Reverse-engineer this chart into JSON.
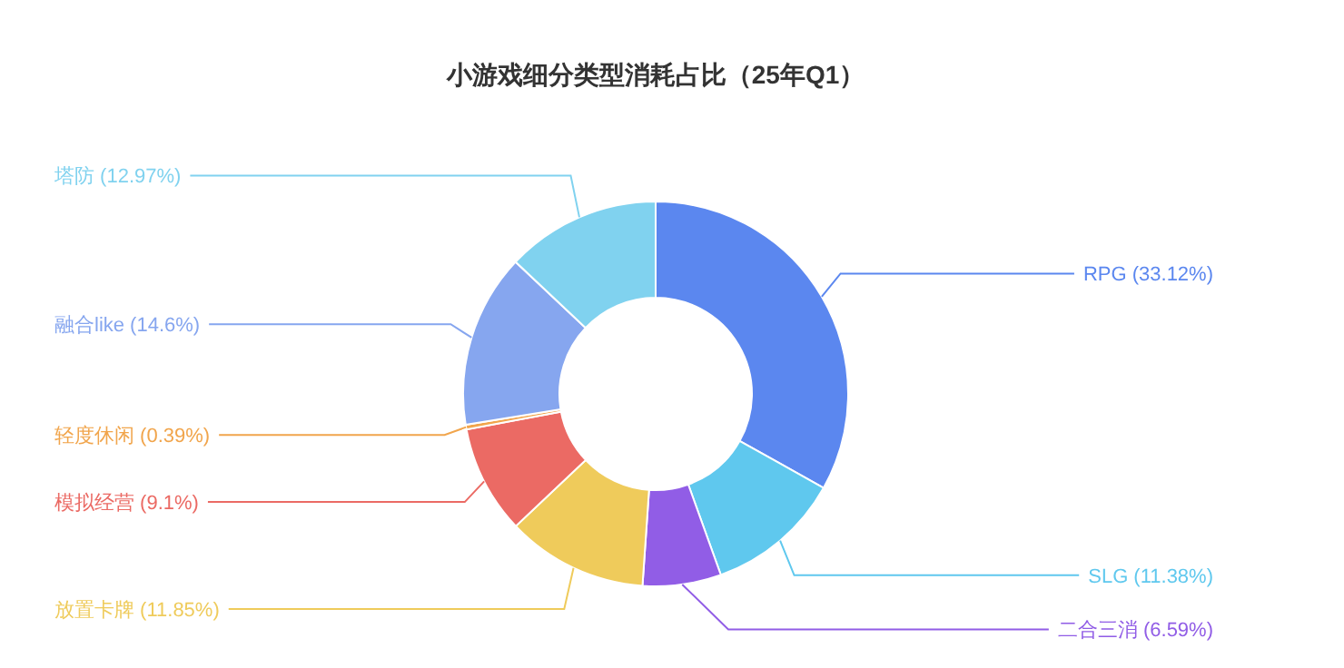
{
  "chart_data": {
    "type": "donut",
    "title": "小游戏细分类型消耗占比（25年Q1）",
    "categories": [
      "RPG",
      "SLG",
      "二合三消",
      "放置卡牌",
      "模拟经营",
      "轻度休闲",
      "融合like",
      "塔防"
    ],
    "values": [
      33.12,
      11.38,
      6.59,
      11.85,
      9.1,
      0.39,
      14.6,
      12.97
    ],
    "value_labels": [
      "(33.12%)",
      "(11.38%)",
      "(6.59%)",
      "(11.85%)",
      "(9.1%)",
      "(0.39%)",
      "(14.6%)",
      "(12.97%)"
    ],
    "colors": [
      "#5b87ef",
      "#5fc8ee",
      "#915de6",
      "#efcb5b",
      "#eb6a64",
      "#f1a54c",
      "#86a6ef",
      "#80d2ef"
    ]
  }
}
